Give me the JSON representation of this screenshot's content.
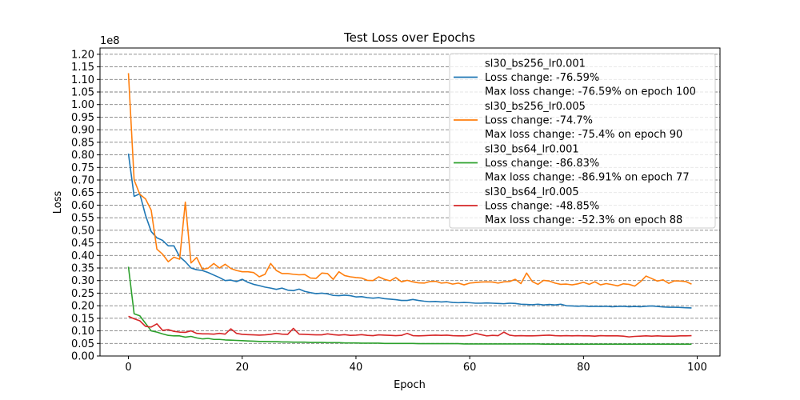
{
  "chart_data": {
    "type": "line",
    "title": "Test Loss over Epochs",
    "xlabel": "Epoch",
    "ylabel": "Loss",
    "y_scale_label": "1e8",
    "xlim": [
      -5,
      104
    ],
    "ylim": [
      0.0,
      1.225
    ],
    "x_ticks": [
      0,
      20,
      40,
      60,
      80,
      100
    ],
    "y_ticks": [
      0.0,
      0.05,
      0.1,
      0.15,
      0.2,
      0.25,
      0.3,
      0.35,
      0.4,
      0.45,
      0.5,
      0.55,
      0.6,
      0.65,
      0.7,
      0.75,
      0.8,
      0.85,
      0.9,
      0.95,
      1.0,
      1.05,
      1.1,
      1.15,
      1.2
    ],
    "y_tick_labels": [
      "0.00",
      "0.05",
      "0.10",
      "0.15",
      "0.20",
      "0.25",
      "0.30",
      "0.35",
      "0.40",
      "0.45",
      "0.50",
      "0.55",
      "0.60",
      "0.65",
      "0.70",
      "0.75",
      "0.80",
      "0.85",
      "0.90",
      "0.95",
      "1.00",
      "1.05",
      "1.10",
      "1.15",
      "1.20"
    ],
    "grid": "horizontal-dashed",
    "legend_position": "top-right",
    "series": [
      {
        "name": "sl30_bs256_lr0.001",
        "legend_lines": [
          "sl30_bs256_lr0.001",
          "Loss change: -76.59%",
          "Max loss change: -76.59% on epoch 100"
        ],
        "color": "#1f77b4",
        "values": [
          0.805,
          0.635,
          0.645,
          0.56,
          0.495,
          0.47,
          0.46,
          0.438,
          0.438,
          0.395,
          0.375,
          0.35,
          0.343,
          0.34,
          0.332,
          0.322,
          0.312,
          0.3,
          0.302,
          0.296,
          0.305,
          0.293,
          0.285,
          0.28,
          0.274,
          0.27,
          0.265,
          0.27,
          0.262,
          0.26,
          0.266,
          0.257,
          0.252,
          0.248,
          0.25,
          0.247,
          0.241,
          0.24,
          0.242,
          0.24,
          0.235,
          0.236,
          0.232,
          0.23,
          0.232,
          0.228,
          0.226,
          0.224,
          0.221,
          0.221,
          0.225,
          0.221,
          0.218,
          0.216,
          0.217,
          0.215,
          0.216,
          0.213,
          0.212,
          0.213,
          0.212,
          0.21,
          0.21,
          0.211,
          0.21,
          0.209,
          0.208,
          0.21,
          0.209,
          0.206,
          0.205,
          0.204,
          0.206,
          0.203,
          0.205,
          0.203,
          0.206,
          0.2,
          0.199,
          0.198,
          0.199,
          0.197,
          0.198,
          0.197,
          0.198,
          0.196,
          0.197,
          0.198,
          0.196,
          0.197,
          0.196,
          0.198,
          0.199,
          0.197,
          0.195,
          0.194,
          0.194,
          0.193,
          0.192,
          0.191
        ]
      },
      {
        "name": "sl30_bs256_lr0.005",
        "legend_lines": [
          "sl30_bs256_lr0.005",
          "Loss change: -74.7%",
          "Max loss change: -75.4% on epoch 90"
        ],
        "color": "#ff7f0e",
        "values": [
          1.125,
          0.7,
          0.643,
          0.625,
          0.58,
          0.425,
          0.405,
          0.375,
          0.393,
          0.385,
          0.612,
          0.37,
          0.392,
          0.345,
          0.349,
          0.368,
          0.35,
          0.365,
          0.348,
          0.34,
          0.335,
          0.335,
          0.332,
          0.315,
          0.325,
          0.368,
          0.34,
          0.328,
          0.328,
          0.325,
          0.323,
          0.324,
          0.31,
          0.309,
          0.33,
          0.328,
          0.305,
          0.335,
          0.32,
          0.315,
          0.312,
          0.31,
          0.301,
          0.3,
          0.315,
          0.305,
          0.299,
          0.312,
          0.295,
          0.301,
          0.295,
          0.291,
          0.29,
          0.296,
          0.297,
          0.29,
          0.292,
          0.286,
          0.29,
          0.283,
          0.29,
          0.292,
          0.294,
          0.295,
          0.294,
          0.29,
          0.295,
          0.296,
          0.305,
          0.288,
          0.33,
          0.296,
          0.285,
          0.301,
          0.298,
          0.29,
          0.285,
          0.286,
          0.283,
          0.287,
          0.293,
          0.285,
          0.295,
          0.283,
          0.288,
          0.284,
          0.279,
          0.287,
          0.285,
          0.278,
          0.295,
          0.318,
          0.308,
          0.298,
          0.303,
          0.289,
          0.299,
          0.298,
          0.296,
          0.286
        ]
      },
      {
        "name": "sl30_bs64_lr0.001",
        "legend_lines": [
          "sl30_bs64_lr0.001",
          "Loss change: -86.83%",
          "Max loss change: -86.91% on epoch 77"
        ],
        "color": "#2ca02c",
        "values": [
          0.355,
          0.168,
          0.16,
          0.13,
          0.1,
          0.095,
          0.088,
          0.082,
          0.08,
          0.08,
          0.075,
          0.078,
          0.072,
          0.068,
          0.07,
          0.066,
          0.066,
          0.064,
          0.063,
          0.062,
          0.061,
          0.06,
          0.059,
          0.058,
          0.058,
          0.057,
          0.057,
          0.056,
          0.056,
          0.055,
          0.055,
          0.055,
          0.054,
          0.054,
          0.054,
          0.053,
          0.053,
          0.053,
          0.052,
          0.052,
          0.052,
          0.051,
          0.051,
          0.051,
          0.051,
          0.05,
          0.05,
          0.05,
          0.05,
          0.05,
          0.05,
          0.049,
          0.049,
          0.049,
          0.049,
          0.049,
          0.049,
          0.049,
          0.049,
          0.048,
          0.048,
          0.048,
          0.048,
          0.048,
          0.048,
          0.048,
          0.048,
          0.048,
          0.048,
          0.048,
          0.048,
          0.048,
          0.048,
          0.047,
          0.047,
          0.047,
          0.047,
          0.047,
          0.047,
          0.047,
          0.047,
          0.047,
          0.047,
          0.047,
          0.047,
          0.047,
          0.047,
          0.047,
          0.047,
          0.047,
          0.047,
          0.047,
          0.047,
          0.047,
          0.047,
          0.047,
          0.047,
          0.047,
          0.047,
          0.047
        ]
      },
      {
        "name": "sl30_bs64_lr0.005",
        "legend_lines": [
          "sl30_bs64_lr0.005",
          "Loss change: -48.85%",
          "Max loss change: -52.3% on epoch 88"
        ],
        "color": "#d62728",
        "values": [
          0.158,
          0.148,
          0.14,
          0.118,
          0.115,
          0.128,
          0.102,
          0.105,
          0.098,
          0.095,
          0.094,
          0.1,
          0.09,
          0.088,
          0.088,
          0.087,
          0.09,
          0.087,
          0.108,
          0.09,
          0.086,
          0.085,
          0.084,
          0.083,
          0.084,
          0.086,
          0.09,
          0.087,
          0.086,
          0.11,
          0.087,
          0.086,
          0.085,
          0.084,
          0.084,
          0.088,
          0.085,
          0.083,
          0.085,
          0.082,
          0.083,
          0.085,
          0.082,
          0.081,
          0.084,
          0.083,
          0.082,
          0.081,
          0.082,
          0.09,
          0.081,
          0.08,
          0.081,
          0.082,
          0.083,
          0.082,
          0.083,
          0.081,
          0.08,
          0.08,
          0.082,
          0.09,
          0.085,
          0.08,
          0.082,
          0.081,
          0.095,
          0.083,
          0.08,
          0.081,
          0.08,
          0.08,
          0.081,
          0.082,
          0.083,
          0.081,
          0.08,
          0.081,
          0.08,
          0.081,
          0.08,
          0.08,
          0.079,
          0.081,
          0.08,
          0.08,
          0.08,
          0.079,
          0.076,
          0.078,
          0.079,
          0.08,
          0.079,
          0.08,
          0.079,
          0.079,
          0.079,
          0.08,
          0.08,
          0.081
        ]
      }
    ]
  }
}
